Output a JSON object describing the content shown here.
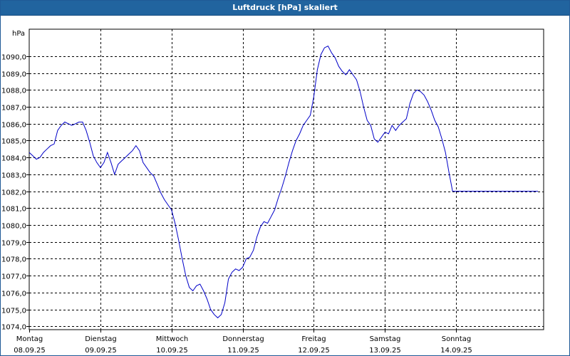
{
  "window": {
    "title": "Luftdruck [hPa] skaliert"
  },
  "colors": {
    "title_bar": "#21649f",
    "line": "#0000c8",
    "grid": "#000000"
  },
  "chart_data": {
    "type": "line",
    "title": "Luftdruck [hPa] skaliert",
    "ylabel": "hPa",
    "xlabel": "",
    "grid": true,
    "legend": "none",
    "ylim": [
      1073.8,
      1091.6
    ],
    "yticks": [
      1074,
      1075,
      1076,
      1077,
      1078,
      1079,
      1080,
      1081,
      1082,
      1083,
      1084,
      1085,
      1086,
      1087,
      1088,
      1089,
      1090
    ],
    "ytick_labels": [
      "1074,0",
      "1075,0",
      "1076,0",
      "1077,0",
      "1078,0",
      "1079,0",
      "1080,0",
      "1081,0",
      "1082,0",
      "1083,0",
      "1084,0",
      "1085,0",
      "1086,0",
      "1087,0",
      "1088,0",
      "1089,0",
      "1090,0"
    ],
    "xlim": [
      0,
      7.23
    ],
    "xticks": [
      {
        "day": "Montag",
        "date": "08.09.25"
      },
      {
        "day": "Dienstag",
        "date": "09.09.25"
      },
      {
        "day": "Mittwoch",
        "date": "10.09.25"
      },
      {
        "day": "Donnerstag",
        "date": "11.09.25"
      },
      {
        "day": "Freitag",
        "date": "12.09.25"
      },
      {
        "day": "Samstag",
        "date": "13.09.25"
      },
      {
        "day": "Sonntag",
        "date": "14.09.25"
      }
    ],
    "series": [
      {
        "x": [
          0.0,
          0.05,
          0.1,
          0.15,
          0.2,
          0.25,
          0.3,
          0.35,
          0.4,
          0.45,
          0.5,
          0.55,
          0.6,
          0.65,
          0.7,
          0.75,
          0.8,
          0.85,
          0.9,
          0.95,
          1.0,
          1.05,
          1.1,
          1.15,
          1.2,
          1.25,
          1.3,
          1.35,
          1.4,
          1.45,
          1.5,
          1.55,
          1.6,
          1.65,
          1.7,
          1.75,
          1.8,
          1.85,
          1.9,
          1.95,
          2.0,
          2.05,
          2.1,
          2.15,
          2.2,
          2.25,
          2.3,
          2.35,
          2.4,
          2.45,
          2.5,
          2.55,
          2.6,
          2.65,
          2.7,
          2.75,
          2.8,
          2.85,
          2.9,
          2.95,
          3.0,
          3.05,
          3.1,
          3.15,
          3.2,
          3.25,
          3.3,
          3.35,
          3.4,
          3.45,
          3.5,
          3.55,
          3.6,
          3.65,
          3.7,
          3.75,
          3.8,
          3.85,
          3.9,
          3.95,
          4.0,
          4.05,
          4.1,
          4.15,
          4.2,
          4.25,
          4.3,
          4.35,
          4.4,
          4.45,
          4.5,
          4.55,
          4.6,
          4.65,
          4.7,
          4.75,
          4.8,
          4.85,
          4.9,
          4.95,
          5.0,
          5.05,
          5.1,
          5.15,
          5.2,
          5.25,
          5.3,
          5.35,
          5.4,
          5.45,
          5.5,
          5.55,
          5.6,
          5.65,
          5.7,
          5.75,
          5.8,
          5.85,
          5.9,
          5.95,
          6.0,
          6.05,
          6.1,
          6.15,
          6.2,
          6.25,
          6.3,
          6.35,
          6.4,
          6.45,
          6.5,
          6.55,
          6.6,
          6.65,
          6.7,
          6.75,
          6.8,
          6.85,
          6.9,
          6.95,
          7.0,
          7.05,
          7.1,
          7.15,
          7.2
        ],
        "y": [
          1084.3,
          1084.1,
          1083.9,
          1084.0,
          1084.3,
          1084.5,
          1084.7,
          1084.8,
          1085.6,
          1085.9,
          1086.1,
          1086.0,
          1085.9,
          1086.0,
          1086.1,
          1086.1,
          1085.6,
          1084.9,
          1084.1,
          1083.7,
          1083.4,
          1083.7,
          1084.3,
          1083.7,
          1083.0,
          1083.6,
          1083.8,
          1084.0,
          1084.2,
          1084.4,
          1084.7,
          1084.4,
          1083.7,
          1083.4,
          1083.1,
          1082.9,
          1082.4,
          1081.9,
          1081.5,
          1081.2,
          1080.9,
          1080.1,
          1079.1,
          1078.0,
          1077.0,
          1076.3,
          1076.1,
          1076.4,
          1076.5,
          1076.1,
          1075.6,
          1075.0,
          1074.7,
          1074.5,
          1074.7,
          1075.4,
          1076.8,
          1077.2,
          1077.4,
          1077.3,
          1077.5,
          1078.0,
          1078.1,
          1078.5,
          1079.3,
          1079.9,
          1080.2,
          1080.1,
          1080.5,
          1080.9,
          1081.6,
          1082.2,
          1082.9,
          1083.7,
          1084.4,
          1085.0,
          1085.4,
          1085.9,
          1086.2,
          1086.5,
          1087.6,
          1089.2,
          1090.1,
          1090.5,
          1090.6,
          1090.2,
          1089.9,
          1089.4,
          1089.1,
          1088.9,
          1089.2,
          1088.9,
          1088.6,
          1087.9,
          1087.0,
          1086.2,
          1085.9,
          1085.1,
          1084.9,
          1085.2,
          1085.5,
          1085.4,
          1085.9,
          1085.6,
          1085.9,
          1086.1,
          1086.3,
          1087.2,
          1087.8,
          1088.0,
          1087.9,
          1087.7,
          1087.3,
          1086.8,
          1086.2,
          1085.8,
          1085.1,
          1084.3,
          1083.1,
          1082.0,
          1082.0,
          1082.0,
          1082.0,
          1082.0,
          1082.0,
          1082.0,
          1082.0,
          1082.0,
          1082.0,
          1082.0,
          1082.0,
          1082.0,
          1082.0,
          1082.0,
          1082.0,
          1082.0,
          1082.0,
          1082.0,
          1082.0,
          1082.0,
          1082.0,
          1082.0,
          1082.0,
          1082.0,
          1082.0
        ]
      }
    ]
  }
}
